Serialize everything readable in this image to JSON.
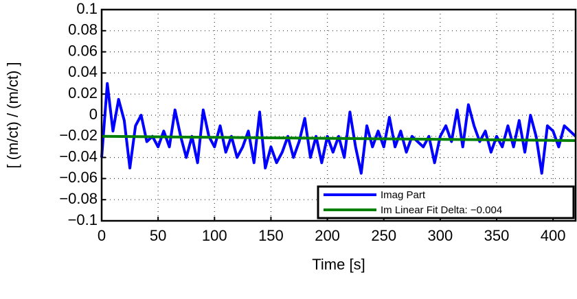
{
  "chart_data": {
    "type": "line",
    "xlabel": "Time [s]",
    "ylabel": "[ (m/ct) / (m/ct) ]",
    "xlim": [
      0,
      420
    ],
    "ylim": [
      -0.1,
      0.1
    ],
    "xticks": [
      0,
      50,
      100,
      150,
      200,
      250,
      300,
      350,
      400
    ],
    "yticks": [
      {
        "value": -0.1,
        "label": "−0.1"
      },
      {
        "value": -0.08,
        "label": "−0.08"
      },
      {
        "value": -0.06,
        "label": "−0.06"
      },
      {
        "value": -0.04,
        "label": "−0.04"
      },
      {
        "value": -0.02,
        "label": "−0.02"
      },
      0,
      0.02,
      0.04,
      0.06,
      0.08,
      0.1
    ],
    "grid": true,
    "legend": "lower right",
    "series": [
      {
        "name": "Imag Part",
        "color": "#0000ff",
        "x": [
          0,
          5,
          10,
          15,
          20,
          25,
          30,
          35,
          40,
          45,
          50,
          55,
          60,
          65,
          70,
          75,
          80,
          85,
          90,
          95,
          100,
          105,
          110,
          115,
          120,
          125,
          130,
          135,
          140,
          145,
          150,
          155,
          160,
          165,
          170,
          175,
          180,
          185,
          190,
          195,
          200,
          205,
          210,
          215,
          220,
          225,
          230,
          235,
          240,
          245,
          250,
          255,
          260,
          265,
          270,
          275,
          280,
          285,
          290,
          295,
          300,
          305,
          310,
          315,
          320,
          325,
          330,
          335,
          340,
          345,
          350,
          355,
          360,
          365,
          370,
          375,
          380,
          385,
          390,
          395,
          400,
          405,
          410,
          415,
          420
        ],
        "values": [
          -0.04,
          0.03,
          -0.015,
          0.015,
          -0.005,
          -0.05,
          -0.01,
          0.0,
          -0.025,
          -0.02,
          -0.03,
          -0.015,
          -0.03,
          0.005,
          -0.02,
          -0.04,
          -0.02,
          -0.045,
          0.005,
          -0.02,
          -0.03,
          -0.01,
          -0.035,
          -0.02,
          -0.04,
          -0.03,
          -0.015,
          -0.045,
          0.003,
          -0.05,
          -0.03,
          -0.045,
          -0.035,
          -0.02,
          -0.04,
          -0.025,
          -0.003,
          -0.04,
          -0.02,
          -0.045,
          -0.02,
          -0.035,
          -0.02,
          -0.04,
          0.003,
          -0.03,
          -0.055,
          -0.01,
          -0.03,
          -0.015,
          -0.03,
          -0.002,
          -0.03,
          -0.015,
          -0.035,
          -0.02,
          -0.025,
          -0.03,
          -0.02,
          -0.045,
          -0.02,
          -0.01,
          -0.025,
          0.005,
          -0.03,
          0.01,
          -0.01,
          -0.025,
          -0.015,
          -0.035,
          -0.02,
          -0.03,
          -0.01,
          -0.03,
          -0.005,
          -0.035,
          0.0,
          -0.02,
          -0.055,
          -0.01,
          -0.015,
          -0.03,
          -0.01,
          -0.015,
          -0.02
        ]
      },
      {
        "name": "Im Linear Fit Delta: −0.004",
        "color": "#008000",
        "x": [
          0,
          420
        ],
        "values": [
          -0.02,
          -0.024
        ]
      }
    ]
  }
}
